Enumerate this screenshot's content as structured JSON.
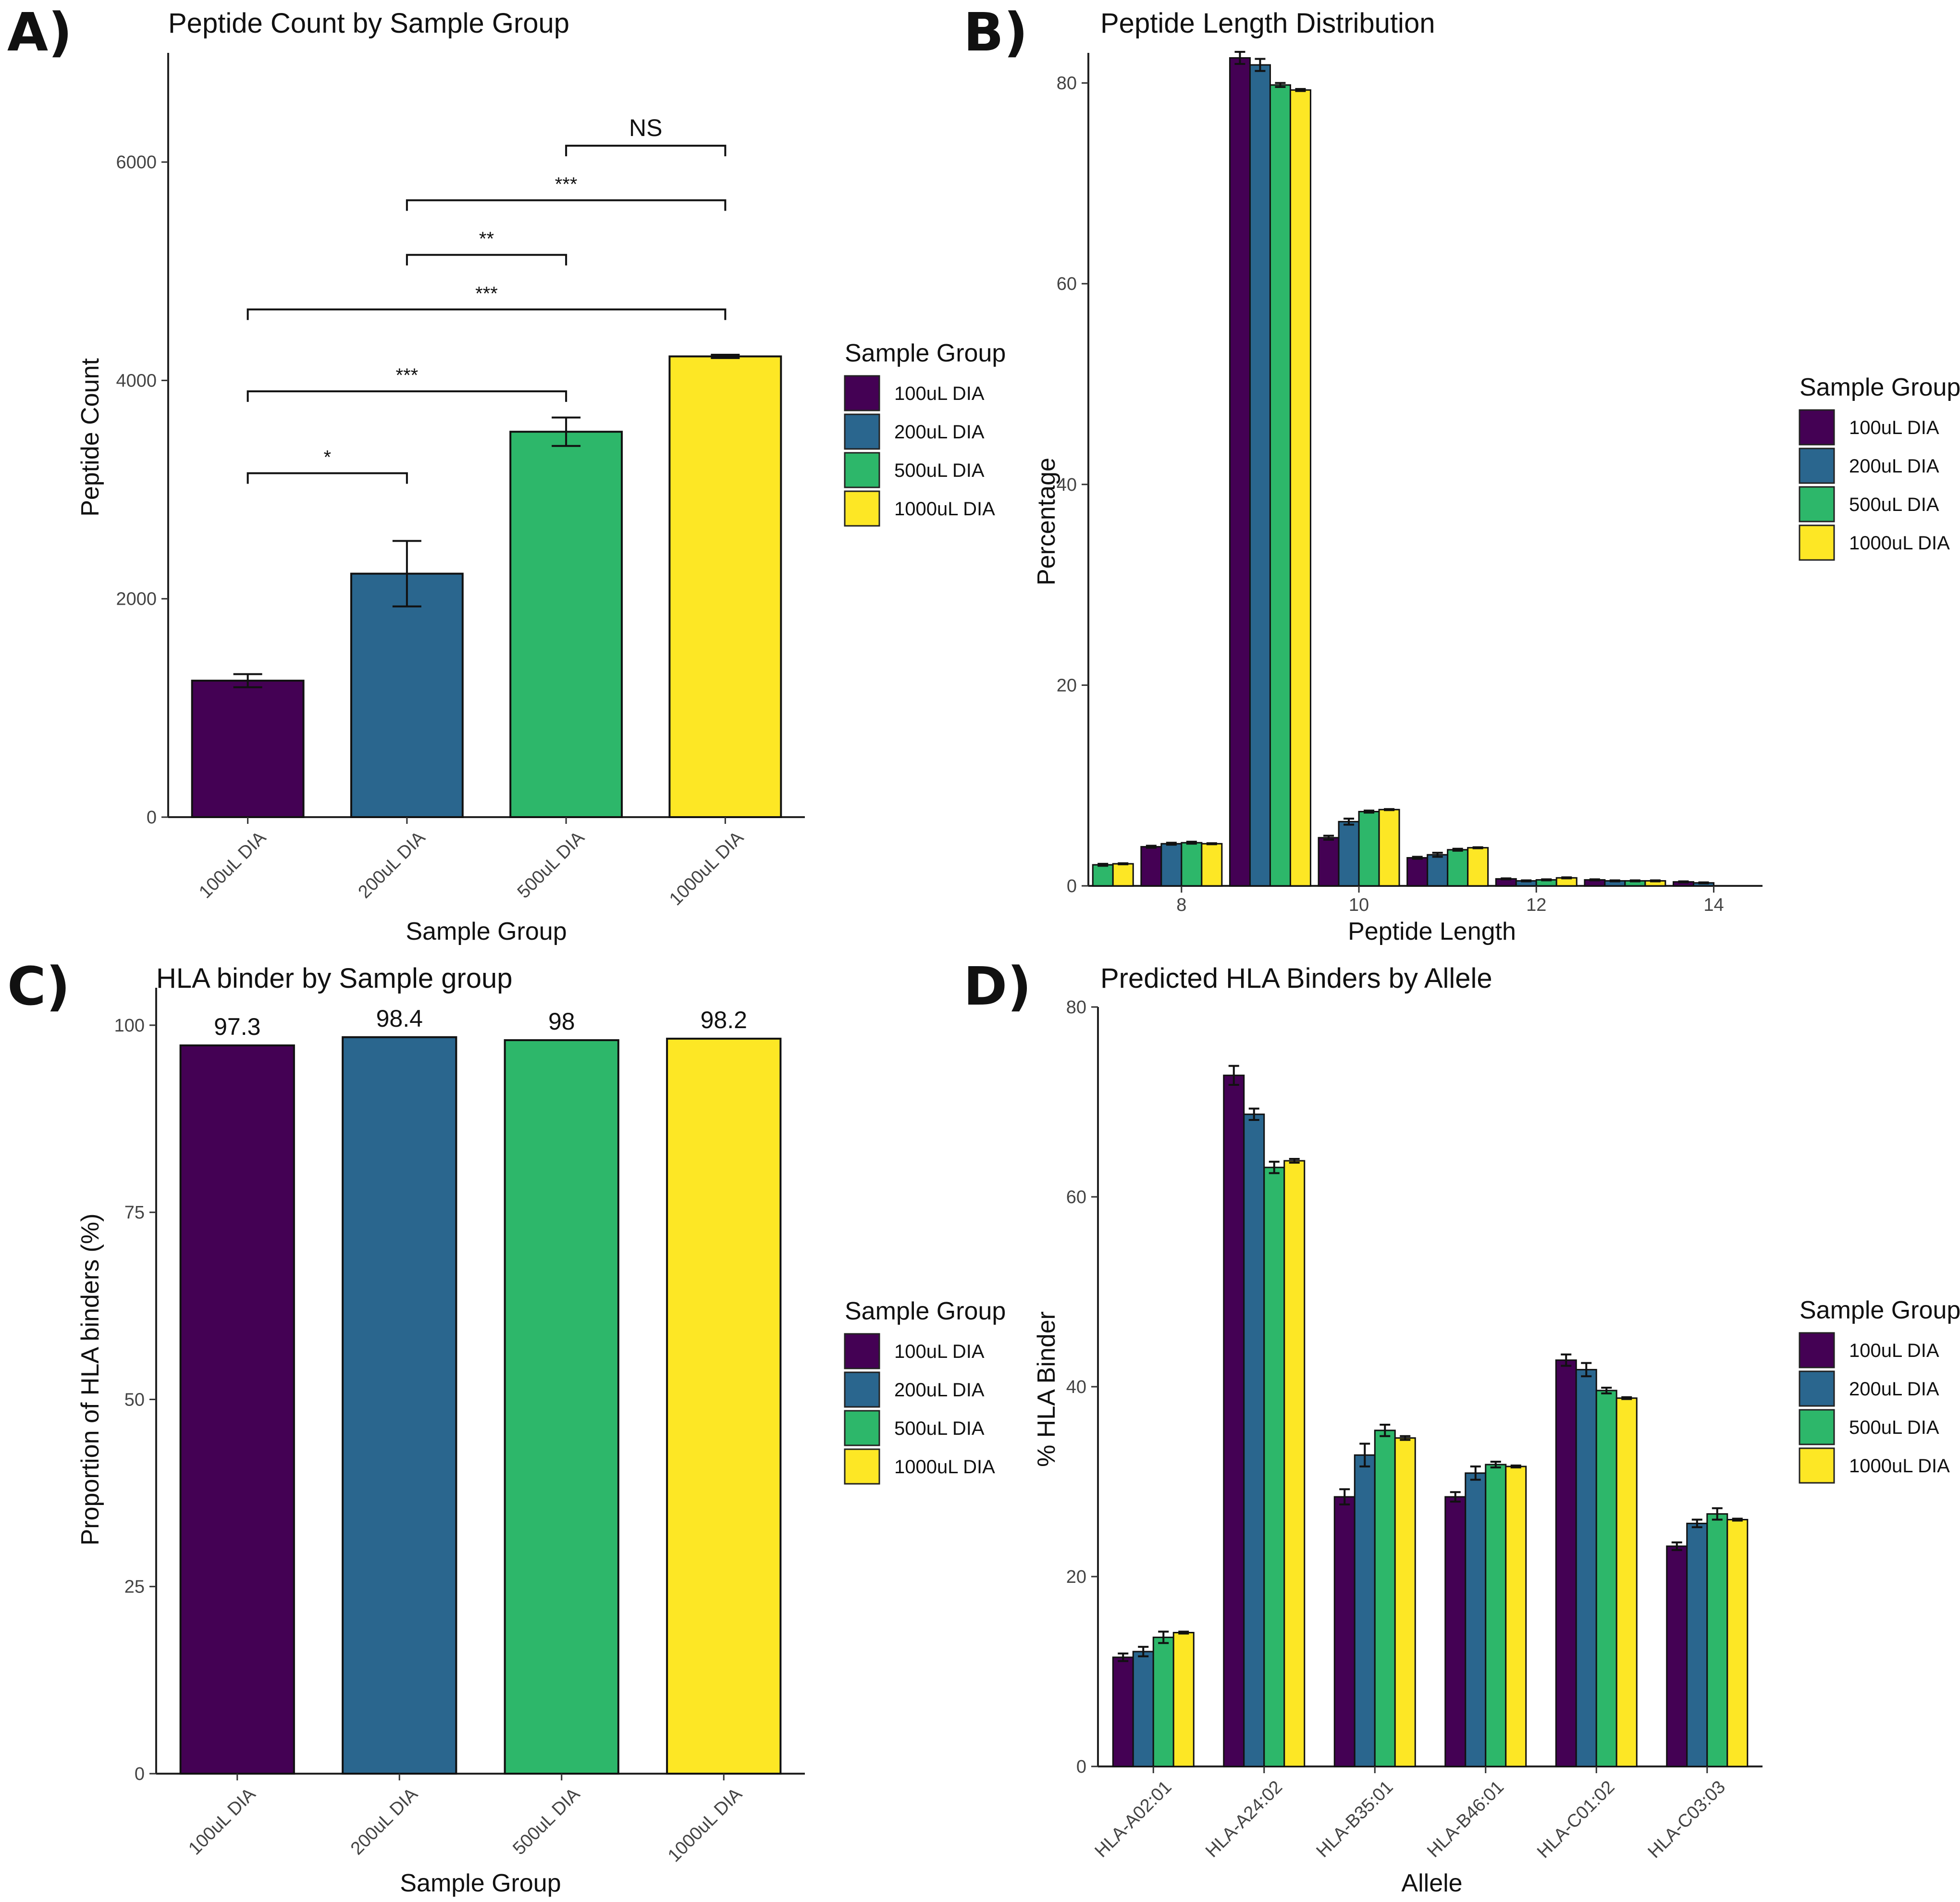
{
  "colors": {
    "100uL DIA": "#440154",
    "200uL DIA": "#2a668e",
    "500uL DIA": "#2db76a",
    "1000uL DIA": "#fde725"
  },
  "chart_data": [
    {
      "id": "A",
      "panel_label": "A)",
      "type": "bar",
      "title": "Peptide Count by Sample Group",
      "xlabel": "Sample Group",
      "ylabel": "Peptide Count",
      "categories": [
        "100uL DIA",
        "200uL DIA",
        "500uL DIA",
        "1000uL DIA"
      ],
      "values": [
        1250,
        2230,
        3530,
        4220
      ],
      "errors": [
        60,
        300,
        130,
        15
      ],
      "ylim": [
        0,
        7000
      ],
      "yticks": [
        0,
        2000,
        4000,
        6000
      ],
      "legend": {
        "title": "Sample Group",
        "entries": [
          "100uL DIA",
          "200uL DIA",
          "500uL DIA",
          "1000uL DIA"
        ]
      },
      "annotations": [
        {
          "from": "100uL DIA",
          "to": "200uL DIA",
          "y": 3150,
          "label": "*"
        },
        {
          "from": "100uL DIA",
          "to": "500uL DIA",
          "y": 3900,
          "label": "***"
        },
        {
          "from": "100uL DIA",
          "to": "1000uL DIA",
          "y": 4650,
          "label": "***"
        },
        {
          "from": "200uL DIA",
          "to": "500uL DIA",
          "y": 5150,
          "label": "**"
        },
        {
          "from": "200uL DIA",
          "to": "1000uL DIA",
          "y": 5650,
          "label": "***"
        },
        {
          "from": "500uL DIA",
          "to": "1000uL DIA",
          "y": 6150,
          "label": "NS"
        }
      ]
    },
    {
      "id": "B",
      "panel_label": "B)",
      "type": "bar",
      "title": "Peptide Length Distribution",
      "xlabel": "Peptide Length",
      "ylabel": "Percentage",
      "x": [
        7,
        8,
        9,
        10,
        11,
        12,
        13,
        14
      ],
      "xticks": [
        8,
        10,
        12,
        14
      ],
      "series": [
        {
          "name": "100uL DIA",
          "values": [
            null,
            3.9,
            82.5,
            4.8,
            2.8,
            0.7,
            0.6,
            0.4
          ],
          "errors": [
            0,
            0.1,
            0.6,
            0.2,
            0.1,
            0.05,
            0.05,
            0.05
          ]
        },
        {
          "name": "200uL DIA",
          "values": [
            null,
            4.2,
            81.8,
            6.4,
            3.1,
            0.5,
            0.5,
            0.3
          ],
          "errors": [
            0,
            0.1,
            0.6,
            0.3,
            0.2,
            0.05,
            0.05,
            0.05
          ]
        },
        {
          "name": "500uL DIA",
          "values": [
            2.1,
            4.3,
            79.8,
            7.4,
            3.6,
            0.6,
            0.5,
            null
          ],
          "errors": [
            0.1,
            0.1,
            0.2,
            0.1,
            0.1,
            0.05,
            0.05,
            0
          ]
        },
        {
          "name": "1000uL DIA",
          "values": [
            2.2,
            4.2,
            79.3,
            7.6,
            3.8,
            0.8,
            0.5,
            null
          ],
          "errors": [
            0.05,
            0.05,
            0.1,
            0.05,
            0.05,
            0.05,
            0.05,
            0
          ]
        }
      ],
      "ylim": [
        0,
        83
      ],
      "yticks": [
        0,
        20,
        40,
        60,
        80
      ],
      "legend": {
        "title": "Sample Group",
        "entries": [
          "100uL DIA",
          "200uL DIA",
          "500uL DIA",
          "1000uL DIA"
        ]
      }
    },
    {
      "id": "C",
      "panel_label": "C)",
      "type": "bar",
      "title": "HLA binder by Sample group",
      "xlabel": "Sample Group",
      "ylabel": "Proportion of HLA binders (%)",
      "categories": [
        "100uL DIA",
        "200uL DIA",
        "500uL DIA",
        "1000uL DIA"
      ],
      "values": [
        97.3,
        98.4,
        98,
        98.2
      ],
      "data_labels": [
        "97.3",
        "98.4",
        "98",
        "98.2"
      ],
      "ylim": [
        0,
        105
      ],
      "yticks": [
        0,
        25,
        50,
        75,
        100
      ],
      "legend": {
        "title": "Sample Group",
        "entries": [
          "100uL DIA",
          "200uL DIA",
          "500uL DIA",
          "1000uL DIA"
        ]
      }
    },
    {
      "id": "D",
      "panel_label": "D)",
      "type": "bar",
      "title": "Predicted HLA Binders by Allele",
      "xlabel": "Allele",
      "ylabel": "% HLA Binder",
      "categories": [
        "HLA-A02:01",
        "HLA-A24:02",
        "HLA-B35:01",
        "HLA-B46:01",
        "HLA-C01:02",
        "HLA-C03:03"
      ],
      "series": [
        {
          "name": "100uL DIA",
          "values": [
            11.5,
            72.8,
            28.4,
            28.4,
            42.8,
            23.2
          ],
          "errors": [
            0.4,
            1.0,
            0.8,
            0.5,
            0.6,
            0.4
          ]
        },
        {
          "name": "200uL DIA",
          "values": [
            12.1,
            68.7,
            32.8,
            30.9,
            41.8,
            25.6
          ],
          "errors": [
            0.5,
            0.6,
            1.2,
            0.7,
            0.7,
            0.4
          ]
        },
        {
          "name": "500uL DIA",
          "values": [
            13.6,
            63.1,
            35.4,
            31.8,
            39.6,
            26.6
          ],
          "errors": [
            0.6,
            0.6,
            0.6,
            0.3,
            0.3,
            0.6
          ]
        },
        {
          "name": "1000uL DIA",
          "values": [
            14.1,
            63.8,
            34.6,
            31.6,
            38.8,
            26.0
          ],
          "errors": [
            0.1,
            0.2,
            0.2,
            0.1,
            0.1,
            0.1
          ]
        }
      ],
      "ylim": [
        0,
        80
      ],
      "yticks": [
        0,
        20,
        40,
        60,
        80
      ],
      "legend": {
        "title": "Sample Group",
        "entries": [
          "100uL DIA",
          "200uL DIA",
          "500uL DIA",
          "1000uL DIA"
        ]
      }
    }
  ]
}
